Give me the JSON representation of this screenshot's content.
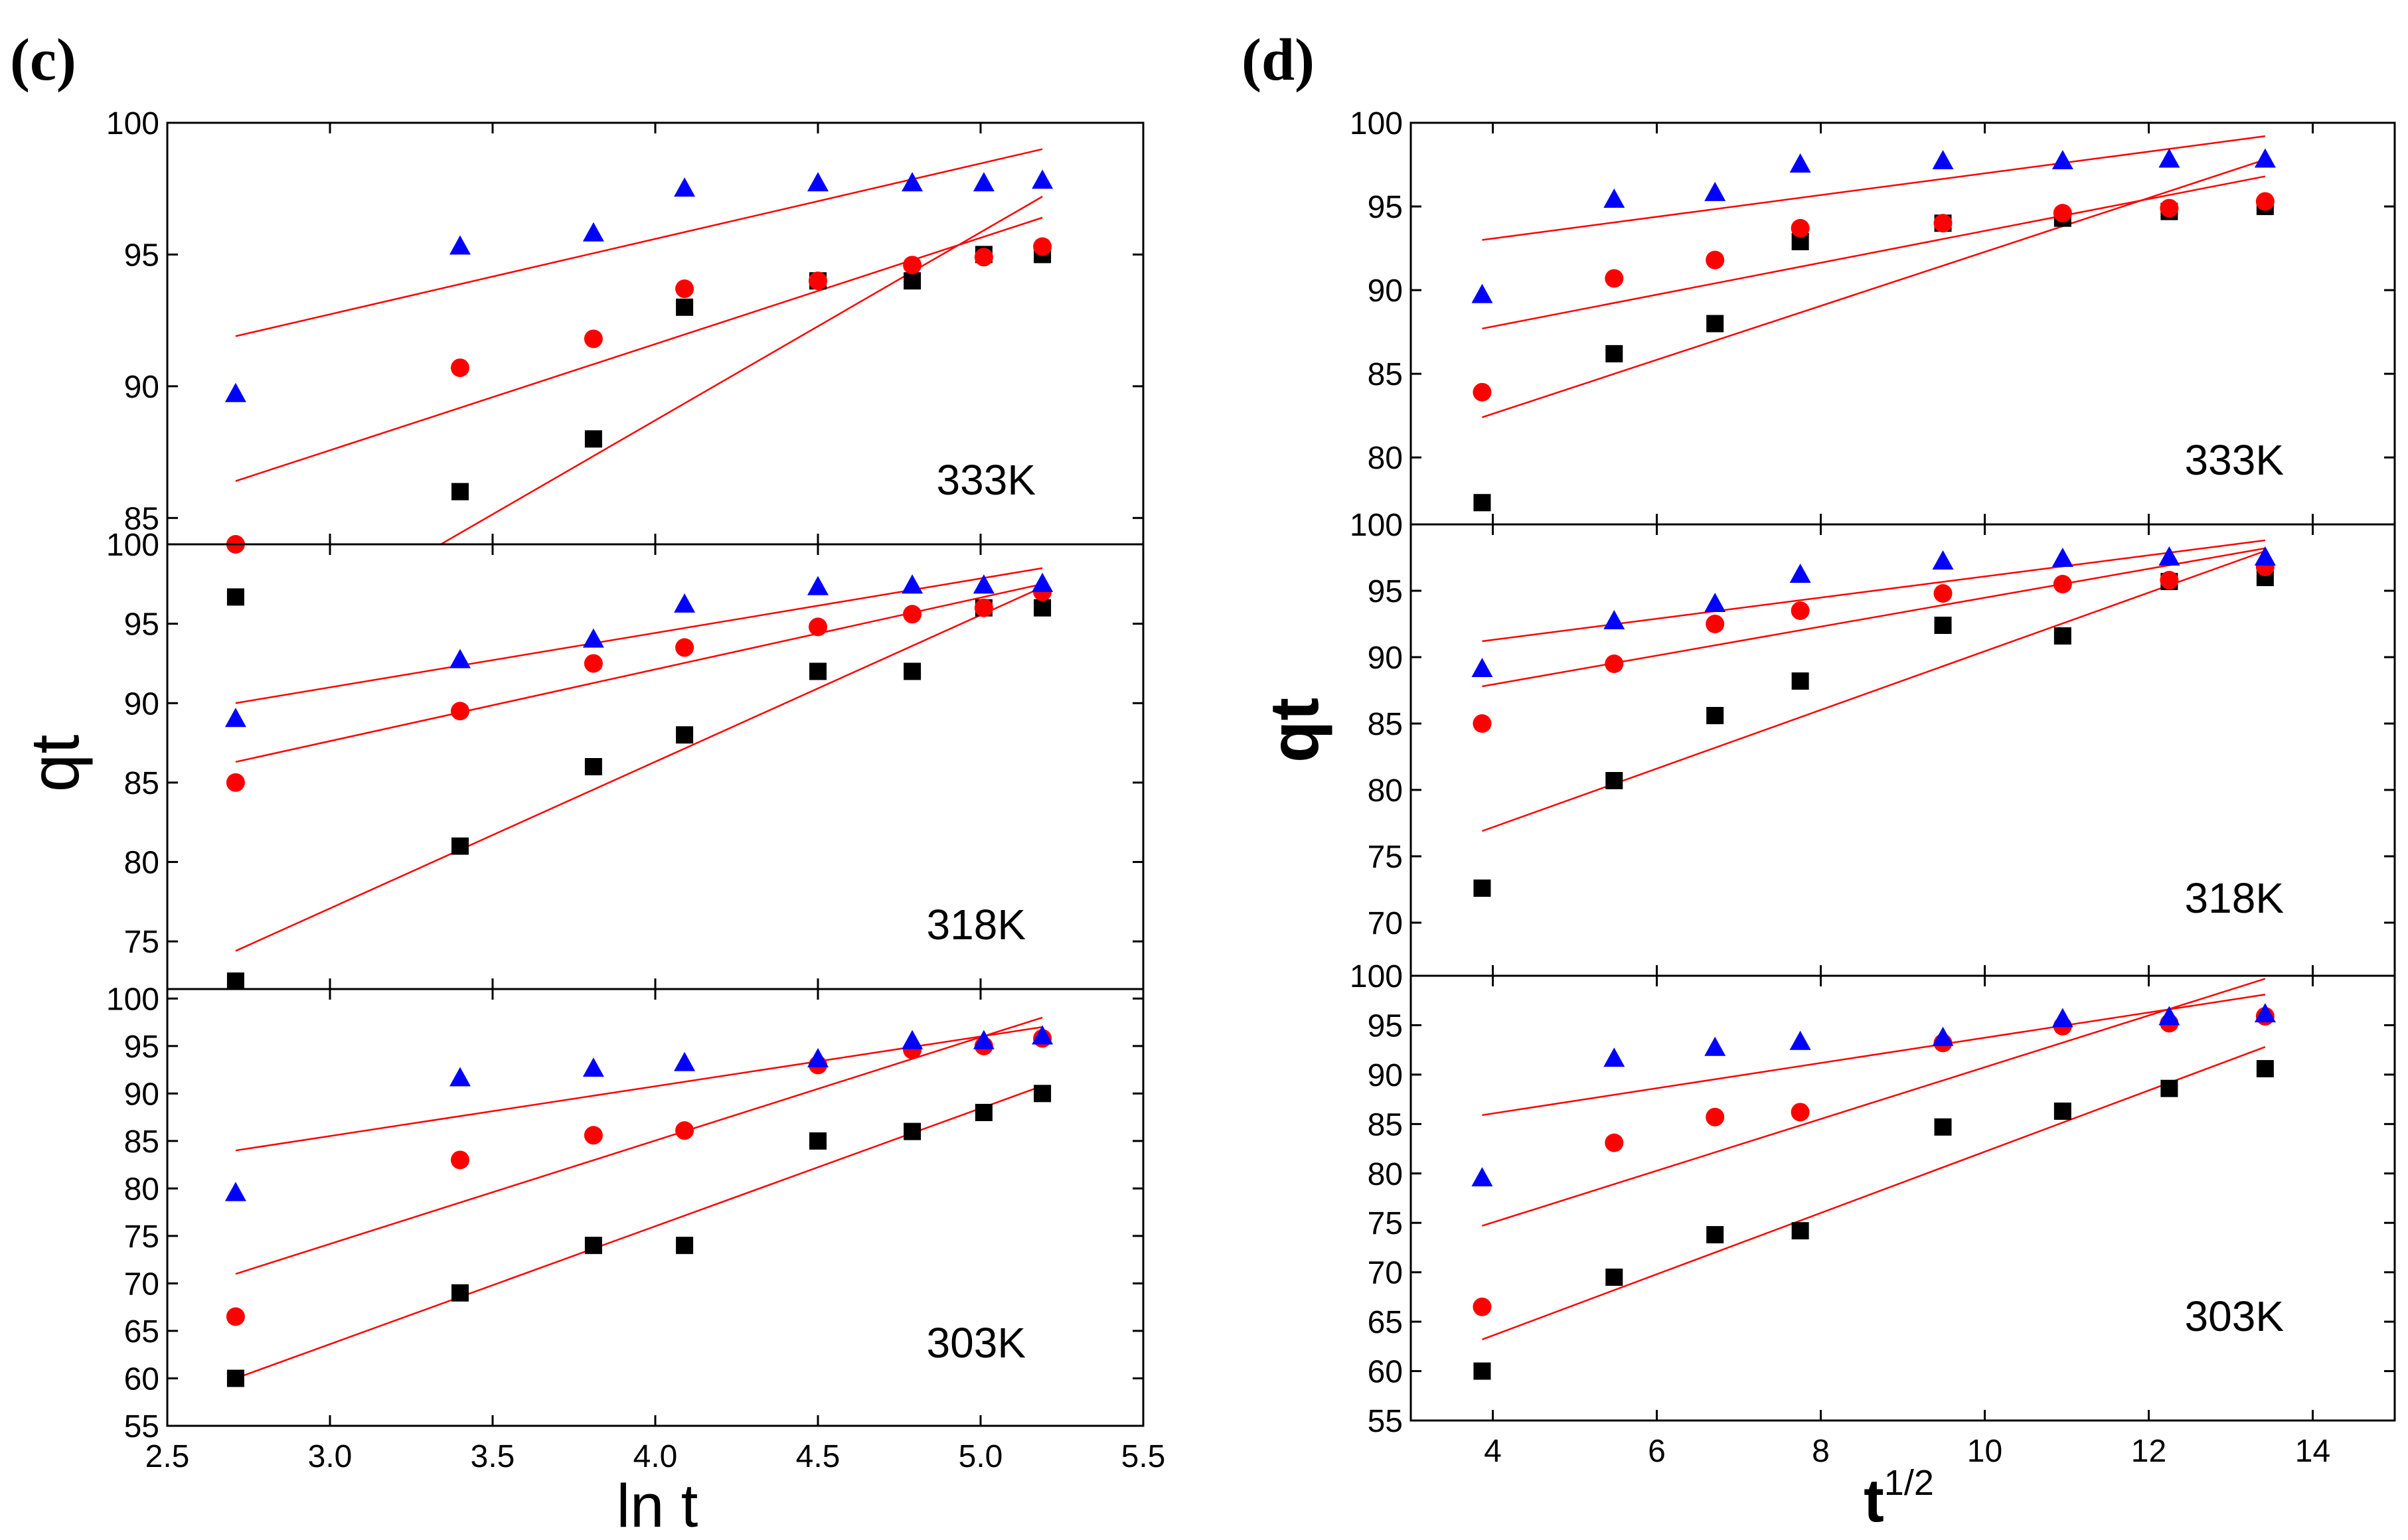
{
  "chart_data": [
    {
      "type": "scatter",
      "panel_label": "(c)",
      "xlabel": "ln t",
      "ylabel": "qt",
      "xlim": [
        2.5,
        5.5
      ],
      "xticks": [
        "2.5",
        "3.0",
        "3.5",
        "4.0",
        "4.5",
        "5.0",
        "5.5"
      ],
      "colors": {
        "black": "#000000",
        "red": "#ff0000",
        "blue": "#0000ff",
        "fit": "#ff0000"
      },
      "subplots": [
        {
          "temperature": "333K",
          "ylim": [
            84,
            100
          ],
          "yticks": [
            "85",
            "90",
            "95",
            "100"
          ],
          "series": [
            {
              "name": "black",
              "marker": "square",
              "x": [
                2.71,
                3.4,
                3.81,
                4.09,
                4.5,
                4.79,
                5.01,
                5.19
              ],
              "y": [
                82.0,
                86.0,
                88.0,
                93.0,
                94.0,
                94.0,
                95.0,
                95.0
              ],
              "fit": [
                [
                  2.71,
                  79.5
                ],
                [
                  5.19,
                  97.2
                ]
              ]
            },
            {
              "name": "red",
              "marker": "circle",
              "x": [
                2.71,
                3.4,
                3.81,
                4.09,
                4.5,
                4.79,
                5.01,
                5.19
              ],
              "y": [
                84.0,
                90.7,
                91.8,
                93.7,
                94.0,
                94.6,
                94.9,
                95.3
              ],
              "fit": [
                [
                  2.71,
                  86.4
                ],
                [
                  5.19,
                  96.4
                ]
              ]
            },
            {
              "name": "blue",
              "marker": "triangle",
              "x": [
                2.71,
                3.4,
                3.81,
                4.09,
                4.5,
                4.79,
                5.01,
                5.19
              ],
              "y": [
                89.7,
                95.3,
                95.8,
                97.5,
                97.7,
                97.7,
                97.7,
                97.8
              ],
              "fit": [
                [
                  2.71,
                  91.9
                ],
                [
                  5.19,
                  99.0
                ]
              ]
            }
          ]
        },
        {
          "temperature": "318K",
          "ylim": [
            72,
            100
          ],
          "yticks": [
            "75",
            "80",
            "85",
            "90",
            "95",
            "100"
          ],
          "series": [
            {
              "name": "black",
              "marker": "square",
              "x": [
                2.71,
                3.4,
                3.81,
                4.09,
                4.5,
                4.79,
                5.01,
                5.19
              ],
              "y": [
                72.5,
                81.0,
                86.0,
                88.0,
                92.0,
                92.0,
                96.0,
                96.0
              ],
              "fit": [
                [
                  2.71,
                  74.4
                ],
                [
                  5.19,
                  97.3
                ]
              ]
            },
            {
              "name": "red",
              "marker": "circle",
              "x": [
                2.71,
                3.4,
                3.81,
                4.09,
                4.5,
                4.79,
                5.01,
                5.19
              ],
              "y": [
                85.0,
                89.5,
                92.5,
                93.5,
                94.8,
                95.6,
                96.0,
                97.0
              ],
              "fit": [
                [
                  2.71,
                  86.3
                ],
                [
                  5.19,
                  97.5
                ]
              ]
            },
            {
              "name": "blue",
              "marker": "triangle",
              "x": [
                2.71,
                3.4,
                3.81,
                4.09,
                4.5,
                4.79,
                5.01,
                5.19
              ],
              "y": [
                89.0,
                92.7,
                94.0,
                96.2,
                97.3,
                97.4,
                97.4,
                97.5
              ],
              "fit": [
                [
                  2.71,
                  90.0
                ],
                [
                  5.19,
                  98.5
                ]
              ]
            }
          ]
        },
        {
          "temperature": "303K",
          "ylim": [
            55,
            101
          ],
          "yticks": [
            "55",
            "60",
            "65",
            "70",
            "75",
            "80",
            "85",
            "90",
            "95",
            "100"
          ],
          "series": [
            {
              "name": "black",
              "marker": "square",
              "x": [
                2.71,
                3.4,
                3.81,
                4.09,
                4.5,
                4.79,
                5.01,
                5.19
              ],
              "y": [
                60.0,
                69.0,
                74.0,
                74.0,
                85.0,
                86.0,
                88.0,
                90.0
              ],
              "fit": [
                [
                  2.71,
                  60.0
                ],
                [
                  5.19,
                  90.8
                ]
              ]
            },
            {
              "name": "red",
              "marker": "circle",
              "x": [
                2.71,
                3.4,
                3.81,
                4.09,
                4.5,
                4.79,
                5.01,
                5.19
              ],
              "y": [
                66.5,
                83.0,
                85.6,
                86.1,
                93.0,
                94.6,
                95.0,
                95.8
              ],
              "fit": [
                [
                  2.71,
                  71.0
                ],
                [
                  5.19,
                  98.0
                ]
              ]
            },
            {
              "name": "blue",
              "marker": "triangle",
              "x": [
                2.71,
                3.4,
                3.81,
                4.09,
                4.5,
                4.79,
                5.01,
                5.19
              ],
              "y": [
                79.5,
                91.6,
                92.6,
                93.2,
                93.6,
                95.5,
                95.5,
                96.0
              ],
              "fit": [
                [
                  2.71,
                  84.0
                ],
                [
                  5.19,
                  97.0
                ]
              ]
            }
          ]
        }
      ]
    },
    {
      "type": "scatter",
      "panel_label": "(d)",
      "xlabel": "t",
      "xlabel_sup": "1/2",
      "ylabel": "qt",
      "xlim": [
        3,
        15
      ],
      "xticks": [
        "4",
        "6",
        "8",
        "10",
        "12",
        "14"
      ],
      "colors": {
        "black": "#000000",
        "red": "#ff0000",
        "blue": "#0000ff",
        "fit": "#ff0000"
      },
      "subplots": [
        {
          "temperature": "333K",
          "ylim": [
            76,
            100
          ],
          "yticks": [
            "80",
            "85",
            "90",
            "95",
            "100"
          ],
          "series": [
            {
              "name": "black",
              "marker": "square",
              "x": [
                3.87,
                5.48,
                6.71,
                7.75,
                9.49,
                10.95,
                12.25,
                13.42
              ],
              "y": [
                77.3,
                86.2,
                88.0,
                92.9,
                94.0,
                94.3,
                94.7,
                95.0
              ],
              "fit": [
                [
                  3.87,
                  82.4
                ],
                [
                  13.42,
                  97.8
                ]
              ]
            },
            {
              "name": "red",
              "marker": "circle",
              "x": [
                3.87,
                5.48,
                6.71,
                7.75,
                9.49,
                10.95,
                12.25,
                13.42
              ],
              "y": [
                83.9,
                90.7,
                91.8,
                93.7,
                94.0,
                94.6,
                94.9,
                95.3
              ],
              "fit": [
                [
                  3.87,
                  87.7
                ],
                [
                  13.42,
                  96.8
                ]
              ]
            },
            {
              "name": "blue",
              "marker": "triangle",
              "x": [
                3.87,
                5.48,
                6.71,
                7.75,
                9.49,
                10.95,
                12.25,
                13.42
              ],
              "y": [
                89.7,
                95.4,
                95.8,
                97.5,
                97.7,
                97.7,
                97.8,
                97.8
              ],
              "fit": [
                [
                  3.87,
                  93.0
                ],
                [
                  13.42,
                  99.2
                ]
              ]
            }
          ]
        },
        {
          "temperature": "318K",
          "ylim": [
            66,
            100
          ],
          "yticks": [
            "70",
            "75",
            "80",
            "85",
            "90",
            "95",
            "100"
          ],
          "series": [
            {
              "name": "black",
              "marker": "square",
              "x": [
                3.87,
                5.48,
                6.71,
                7.75,
                9.49,
                10.95,
                12.25,
                13.42
              ],
              "y": [
                72.6,
                80.7,
                85.6,
                88.2,
                92.4,
                91.6,
                95.7,
                96.0
              ],
              "fit": [
                [
                  3.87,
                  76.9
                ],
                [
                  13.42,
                  98.0
                ]
              ]
            },
            {
              "name": "red",
              "marker": "circle",
              "x": [
                3.87,
                5.48,
                6.71,
                7.75,
                9.49,
                10.95,
                12.25,
                13.42
              ],
              "y": [
                85.0,
                89.5,
                92.5,
                93.5,
                94.8,
                95.5,
                95.8,
                96.8
              ],
              "fit": [
                [
                  3.87,
                  87.8
                ],
                [
                  13.42,
                  98.2
                ]
              ]
            },
            {
              "name": "blue",
              "marker": "triangle",
              "x": [
                3.87,
                5.48,
                6.71,
                7.75,
                9.49,
                10.95,
                12.25,
                13.42
              ],
              "y": [
                89.1,
                92.7,
                94.0,
                96.2,
                97.2,
                97.4,
                97.5,
                97.5
              ],
              "fit": [
                [
                  3.87,
                  91.2
                ],
                [
                  13.42,
                  98.8
                ]
              ]
            }
          ]
        },
        {
          "temperature": "303K",
          "ylim": [
            55,
            100
          ],
          "yticks": [
            "55",
            "60",
            "65",
            "70",
            "75",
            "80",
            "85",
            "90",
            "95",
            "100"
          ],
          "series": [
            {
              "name": "black",
              "marker": "square",
              "x": [
                3.87,
                5.48,
                6.71,
                7.75,
                9.49,
                10.95,
                12.25,
                13.42
              ],
              "y": [
                60.0,
                69.5,
                73.8,
                74.2,
                84.7,
                86.3,
                88.6,
                90.6
              ],
              "fit": [
                [
                  3.87,
                  63.2
                ],
                [
                  13.42,
                  92.8
                ]
              ]
            },
            {
              "name": "red",
              "marker": "circle",
              "x": [
                3.87,
                5.48,
                6.71,
                7.75,
                9.49,
                10.95,
                12.25,
                13.42
              ],
              "y": [
                66.5,
                83.1,
                85.7,
                86.2,
                93.2,
                94.9,
                95.2,
                95.9
              ],
              "fit": [
                [
                  3.87,
                  74.7
                ],
                [
                  13.42,
                  99.7
                ]
              ]
            },
            {
              "name": "blue",
              "marker": "triangle",
              "x": [
                3.87,
                5.48,
                6.71,
                7.75,
                9.49,
                10.95,
                12.25,
                13.42
              ],
              "y": [
                79.5,
                91.6,
                92.7,
                93.3,
                93.7,
                95.6,
                95.8,
                96.1
              ],
              "fit": [
                [
                  3.87,
                  85.9
                ],
                [
                  13.42,
                  98.1
                ]
              ]
            }
          ]
        }
      ]
    }
  ]
}
